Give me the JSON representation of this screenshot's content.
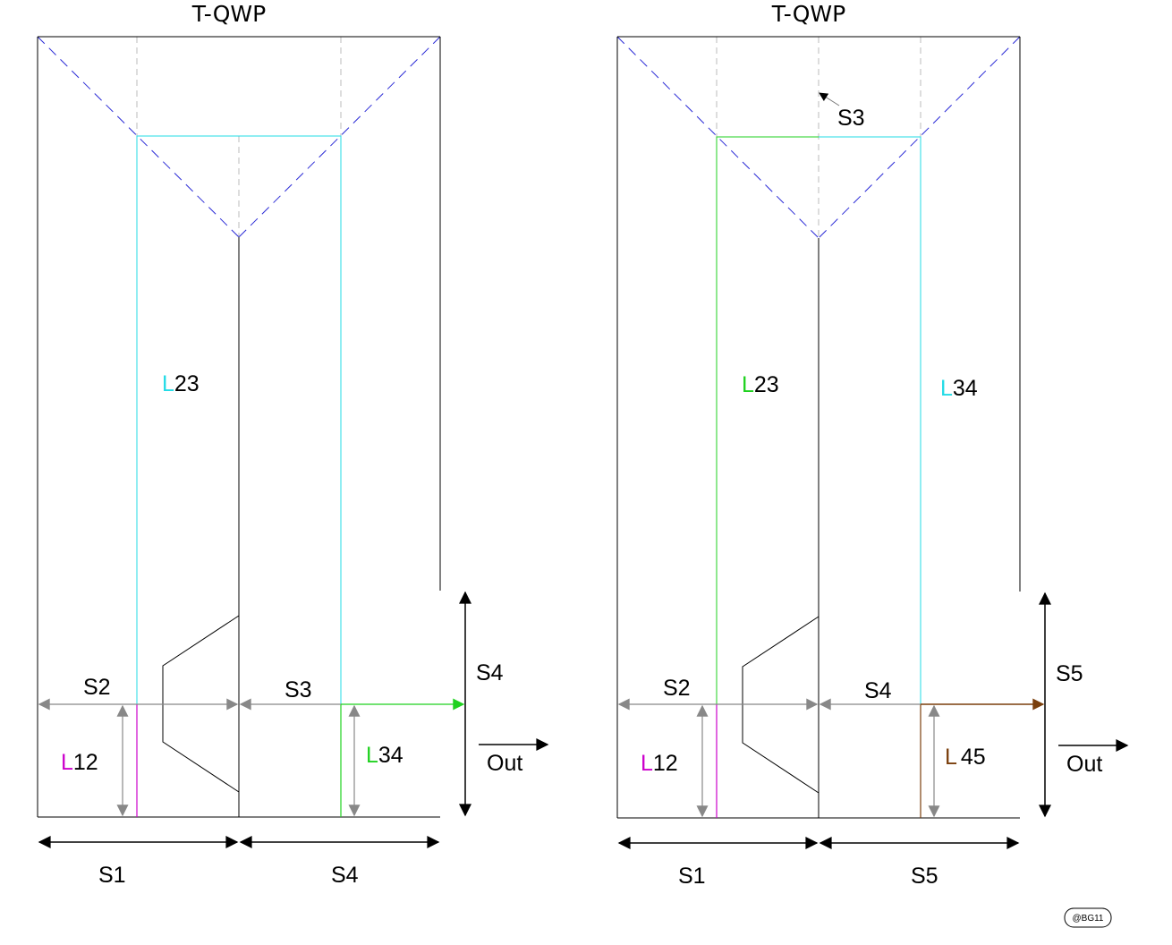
{
  "colors": {
    "cyan": "#22dbe6",
    "green": "#1fd11f",
    "magenta": "#cc00cc",
    "brown": "#7a3f0c",
    "gray_arrow": "#888888",
    "blue_dash": "#2a2ad6",
    "gray_dash": "#bbbbbb",
    "black": "#000000"
  },
  "left": {
    "title": "T-QWP",
    "L23": {
      "letter": "L",
      "num": "23"
    },
    "L12": {
      "letter": "L",
      "num": "12"
    },
    "L34": {
      "letter": "L",
      "num": "34"
    },
    "S1": "S1",
    "S2": "S2",
    "S3": "S3",
    "S4_bottom": "S4",
    "S4_right": "S4",
    "out": "Out"
  },
  "right": {
    "title": "T-QWP",
    "S3_note": "S3",
    "L23": {
      "letter": "L",
      "num": "23"
    },
    "L34": {
      "letter": "L",
      "num": "34"
    },
    "L12": {
      "letter": "L",
      "num": "12"
    },
    "L45": {
      "letter": "L",
      "num": "45"
    },
    "S1": "S1",
    "S2": "S2",
    "S4": "S4",
    "S5_bottom": "S5",
    "S5_right": "S5",
    "out": "Out"
  },
  "watermark": "@BG11"
}
